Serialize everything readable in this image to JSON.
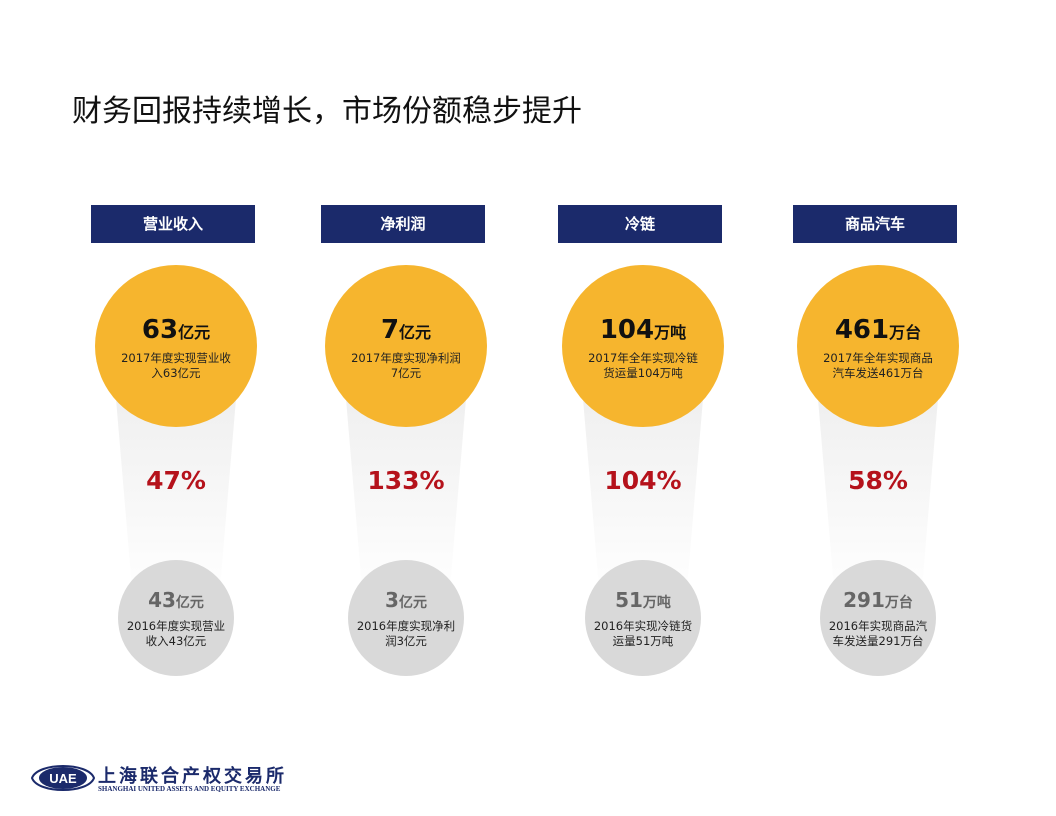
{
  "title": "财务回报持续增长，市场份额稳步提升",
  "columns": [
    {
      "label": "营业收入",
      "current": {
        "value": "63",
        "unit": "亿元",
        "desc": "2017年度实现营业收入63亿元"
      },
      "growth": "47%",
      "previous": {
        "value": "43",
        "unit": "亿元",
        "desc": "2016年度实现营业收入43亿元"
      }
    },
    {
      "label": "净利润",
      "current": {
        "value": "7",
        "unit": "亿元",
        "desc": "2017年度实现净利润7亿元"
      },
      "growth": "133%",
      "previous": {
        "value": "3",
        "unit": "亿元",
        "desc": "2016年度实现净利润3亿元"
      }
    },
    {
      "label": "冷链",
      "current": {
        "value": "104",
        "unit": "万吨",
        "desc": "2017年全年实现冷链货运量104万吨"
      },
      "growth": "104%",
      "previous": {
        "value": "51",
        "unit": "万吨",
        "desc": "2016年实现冷链货运量51万吨"
      }
    },
    {
      "label": "商品汽车",
      "current": {
        "value": "461",
        "unit": "万台",
        "desc": "2017年全年实现商品汽车发送461万台"
      },
      "growth": "58%",
      "previous": {
        "value": "291",
        "unit": "万台",
        "desc": "2016年实现商品汽车发送量291万台"
      }
    }
  ],
  "logo": {
    "abbr": "UAE",
    "name_cn": "上海联合产权交易所",
    "name_en": "SHANGHAI UNITED ASSETS AND EQUITY EXCHANGE"
  },
  "colors": {
    "navy": "#1b2a6b",
    "gold": "#f6b52e",
    "gray": "#d9d9d9",
    "red": "#b5121b"
  }
}
